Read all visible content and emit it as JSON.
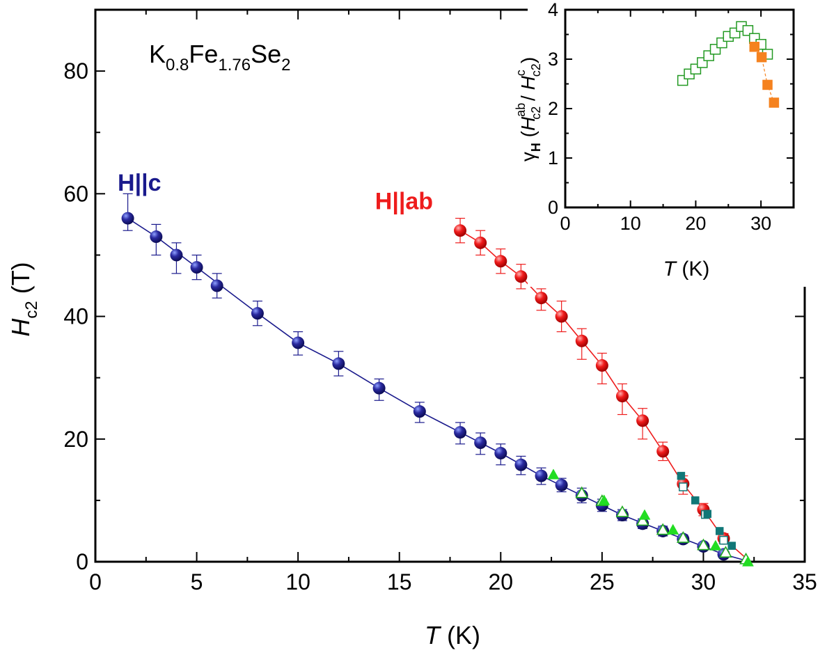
{
  "chart_data": [
    {
      "id": "main",
      "type": "scatter",
      "annotation": {
        "prefix": "K",
        "sub1": "0.8",
        "mid": "Fe",
        "sub2": "1.76",
        "mid2": "Se",
        "sub3": "2"
      },
      "xlabel": {
        "var": "T",
        "unit": " (K)"
      },
      "ylabel": {
        "var": "H",
        "sub": "c2",
        "unit": " (T)"
      },
      "xlim": [
        0,
        35
      ],
      "ylim": [
        0,
        90
      ],
      "xticks": [
        0,
        5,
        10,
        15,
        20,
        25,
        30,
        35
      ],
      "xticks_labels": [
        "0",
        "5",
        "10",
        "15",
        "20",
        "25",
        "30",
        "35"
      ],
      "yticks": [
        0,
        20,
        40,
        60,
        80
      ],
      "yticks_labels": [
        "0",
        "20",
        "40",
        "60",
        "80"
      ],
      "grid": false,
      "series": [
        {
          "name": "H||c",
          "color": "#1a1a8c",
          "marker": "circle",
          "points": [
            {
              "x": 1.6,
              "y": 56,
              "lo": 54,
              "hi": 60
            },
            {
              "x": 3,
              "y": 53,
              "lo": 50,
              "hi": 55
            },
            {
              "x": 4,
              "y": 50,
              "lo": 47,
              "hi": 52
            },
            {
              "x": 5,
              "y": 48,
              "lo": 46,
              "hi": 50
            },
            {
              "x": 6,
              "y": 45,
              "lo": 43,
              "hi": 47
            },
            {
              "x": 8,
              "y": 40.5,
              "lo": 38.5,
              "hi": 42.5
            },
            {
              "x": 10,
              "y": 35.7,
              "lo": 33.7,
              "hi": 37.5
            },
            {
              "x": 12,
              "y": 32.3,
              "lo": 30.3,
              "hi": 34.3
            },
            {
              "x": 14,
              "y": 28.3,
              "lo": 26.3,
              "hi": 29.8
            },
            {
              "x": 16,
              "y": 24.5,
              "lo": 22.7,
              "hi": 26
            },
            {
              "x": 18,
              "y": 21.1,
              "lo": 19.2,
              "hi": 22.7
            },
            {
              "x": 19,
              "y": 19.4,
              "lo": 17.5,
              "hi": 21
            },
            {
              "x": 20,
              "y": 17.7,
              "lo": 15.8,
              "hi": 19.2
            },
            {
              "x": 21,
              "y": 15.8,
              "lo": 14.2,
              "hi": 17.2
            },
            {
              "x": 22,
              "y": 14,
              "lo": 12.6,
              "hi": 15.3
            },
            {
              "x": 23,
              "y": 12.5,
              "lo": 11.4,
              "hi": 13.6
            },
            {
              "x": 24,
              "y": 10.8,
              "lo": 9.6,
              "hi": 12
            },
            {
              "x": 25,
              "y": 9.2,
              "lo": 8.2,
              "hi": 10.2
            },
            {
              "x": 26,
              "y": 7.6,
              "lo": 6.7,
              "hi": 8.5
            },
            {
              "x": 27,
              "y": 6.2,
              "lo": 5.4,
              "hi": 7
            },
            {
              "x": 28,
              "y": 5,
              "lo": 4.2,
              "hi": 5.8
            },
            {
              "x": 29,
              "y": 3.7,
              "lo": 3,
              "hi": 4.4
            },
            {
              "x": 30,
              "y": 2.5,
              "lo": 1.9,
              "hi": 3.1
            },
            {
              "x": 31,
              "y": 1.2,
              "lo": 0.7,
              "hi": 1.7
            }
          ],
          "fit": [
            [
              1.6,
              56
            ],
            [
              3,
              53
            ],
            [
              5,
              48
            ],
            [
              8,
              40.5
            ],
            [
              10,
              35.7
            ],
            [
              12,
              32.3
            ],
            [
              14,
              28.3
            ],
            [
              16,
              24.5
            ],
            [
              18,
              21.1
            ],
            [
              20,
              17.7
            ],
            [
              22,
              14
            ],
            [
              24,
              10.8
            ],
            [
              26,
              7.6
            ],
            [
              28,
              5
            ],
            [
              30,
              2.5
            ],
            [
              31,
              1.2
            ],
            [
              32.3,
              0
            ]
          ]
        },
        {
          "name": "H||ab",
          "color": "#ee1c1c",
          "marker": "circle",
          "points": [
            {
              "x": 18,
              "y": 54,
              "lo": 52,
              "hi": 56
            },
            {
              "x": 19,
              "y": 52,
              "lo": 50,
              "hi": 54
            },
            {
              "x": 20,
              "y": 49,
              "lo": 47,
              "hi": 51
            },
            {
              "x": 21,
              "y": 46.5,
              "lo": 44.5,
              "hi": 48.5
            },
            {
              "x": 22,
              "y": 43,
              "lo": 41,
              "hi": 44.5
            },
            {
              "x": 23,
              "y": 40,
              "lo": 37.5,
              "hi": 42.5
            },
            {
              "x": 24,
              "y": 36,
              "lo": 33,
              "hi": 38
            },
            {
              "x": 25,
              "y": 32,
              "lo": 29,
              "hi": 34
            },
            {
              "x": 26,
              "y": 27,
              "lo": 24,
              "hi": 29
            },
            {
              "x": 27,
              "y": 23,
              "lo": 20,
              "hi": 25
            },
            {
              "x": 28,
              "y": 18,
              "lo": 16.5,
              "hi": 19.5
            },
            {
              "x": 29,
              "y": 12.7,
              "lo": 11,
              "hi": 14
            },
            {
              "x": 30,
              "y": 8.5,
              "lo": 7.5,
              "hi": 9.5
            },
            {
              "x": 31,
              "y": 3.8,
              "lo": 3,
              "hi": 4.6
            }
          ],
          "fit": [
            [
              18,
              54
            ],
            [
              19,
              52
            ],
            [
              20,
              49
            ],
            [
              21,
              46.5
            ],
            [
              22,
              43
            ],
            [
              23,
              40
            ],
            [
              24,
              36
            ],
            [
              25,
              32
            ],
            [
              26,
              27
            ],
            [
              27,
              23
            ],
            [
              28,
              18
            ],
            [
              29,
              12.7
            ],
            [
              30,
              8.5
            ],
            [
              31,
              3.8
            ],
            [
              32.3,
              0
            ]
          ]
        },
        {
          "name": "green-filled-triangles",
          "color": "#22dd22",
          "marker": "triangle-filled",
          "points": [
            {
              "x": 22.6,
              "y": 14.2
            },
            {
              "x": 25.1,
              "y": 10
            },
            {
              "x": 27.1,
              "y": 7.6
            },
            {
              "x": 28.5,
              "y": 5.2
            },
            {
              "x": 30.6,
              "y": 2.6
            },
            {
              "x": 32.2,
              "y": 0
            }
          ]
        },
        {
          "name": "green-open-triangles",
          "color": "#22aa22",
          "marker": "triangle-open",
          "points": [
            {
              "x": 24,
              "y": 11.2
            },
            {
              "x": 25,
              "y": 9.9
            },
            {
              "x": 26,
              "y": 8.1
            },
            {
              "x": 27,
              "y": 6.7
            },
            {
              "x": 28,
              "y": 5.2
            },
            {
              "x": 29,
              "y": 3.9
            },
            {
              "x": 30,
              "y": 2.7
            },
            {
              "x": 31.1,
              "y": 1.5
            },
            {
              "x": 32.1,
              "y": 0.4
            }
          ]
        },
        {
          "name": "teal-filled-squares",
          "color": "#117777",
          "marker": "square-filled",
          "points": [
            {
              "x": 28.9,
              "y": 14
            },
            {
              "x": 29.6,
              "y": 10
            },
            {
              "x": 30.2,
              "y": 7.8
            },
            {
              "x": 30.8,
              "y": 5
            },
            {
              "x": 31.4,
              "y": 2.6
            }
          ]
        },
        {
          "name": "teal-open-squares",
          "color": "#117777",
          "marker": "square-open",
          "points": [
            {
              "x": 29,
              "y": 12.2
            },
            {
              "x": 30.1,
              "y": 7.7
            },
            {
              "x": 31,
              "y": 3.5
            }
          ]
        }
      ],
      "labels": [
        {
          "text": "H||c",
          "x": 1.1,
          "y": 60.5,
          "color": "#1a1a8c"
        },
        {
          "text": "H||ab",
          "x": 13.8,
          "y": 57.5,
          "color": "#ee1c1c"
        }
      ]
    },
    {
      "id": "inset",
      "type": "scatter",
      "xlabel": {
        "var": "T",
        "unit": " (K)"
      },
      "ylabel": {
        "gamma": "γ",
        "gsub": "H",
        "open": " (",
        "v1": "H",
        "v1sub": "c2",
        "v1sup": "ab",
        "slash": " / ",
        "v2": "H",
        "v2sub": "c2",
        "v2sup": "c",
        "close": ")"
      },
      "xlim": [
        0,
        35
      ],
      "ylim": [
        0,
        4
      ],
      "xticks": [
        0,
        10,
        20,
        30
      ],
      "xticks_labels": [
        "0",
        "10",
        "20",
        "30"
      ],
      "yticks": [
        0,
        1,
        2,
        3,
        4
      ],
      "yticks_labels": [
        "0",
        "1",
        "2",
        "3",
        "4"
      ],
      "grid": false,
      "series": [
        {
          "name": "open-green-squares",
          "color": "#229922",
          "marker": "square-open",
          "points": [
            {
              "x": 18,
              "y": 2.57
            },
            {
              "x": 19,
              "y": 2.7
            },
            {
              "x": 20,
              "y": 2.8
            },
            {
              "x": 21,
              "y": 2.93
            },
            {
              "x": 22,
              "y": 3.07
            },
            {
              "x": 23,
              "y": 3.2
            },
            {
              "x": 24,
              "y": 3.33
            },
            {
              "x": 25,
              "y": 3.46
            },
            {
              "x": 26,
              "y": 3.53
            },
            {
              "x": 27,
              "y": 3.66
            },
            {
              "x": 28,
              "y": 3.58
            },
            {
              "x": 29,
              "y": 3.42
            },
            {
              "x": 30,
              "y": 3.3
            },
            {
              "x": 31,
              "y": 3.1
            }
          ]
        },
        {
          "name": "filled-orange-squares",
          "color": "#f5821f",
          "marker": "square-filled",
          "connect": true,
          "points": [
            {
              "x": 29,
              "y": 3.25
            },
            {
              "x": 30.1,
              "y": 3.04
            },
            {
              "x": 31,
              "y": 2.48
            },
            {
              "x": 32,
              "y": 2.12
            }
          ]
        }
      ]
    }
  ]
}
